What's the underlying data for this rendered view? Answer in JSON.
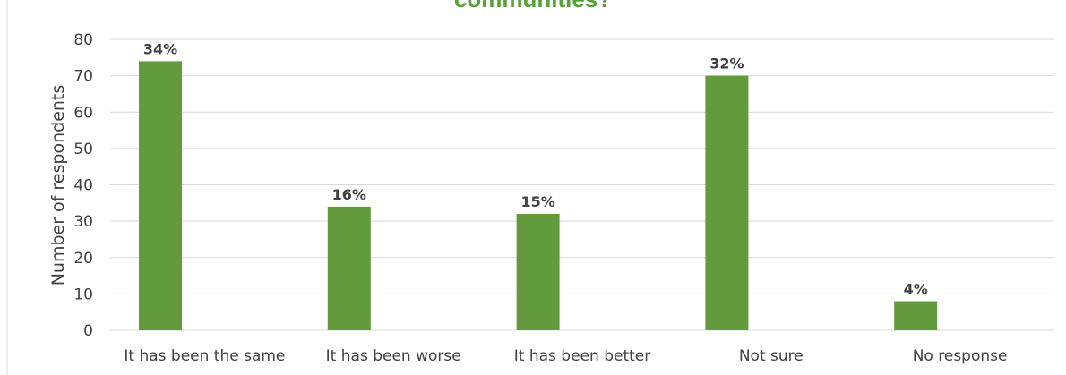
{
  "chart_data": {
    "type": "bar",
    "title": "communities?",
    "xlabel": "",
    "ylabel": "Number of respondents",
    "ylim": [
      0,
      80
    ],
    "yticks": [
      0,
      10,
      20,
      30,
      40,
      50,
      60,
      70,
      80
    ],
    "grid": true,
    "legend": "none",
    "categories": [
      "It has been the same",
      "It has been worse",
      "It has been better",
      "Not sure",
      "No response"
    ],
    "series": [
      {
        "values": [
          74,
          34,
          32,
          70,
          8
        ],
        "data_labels": [
          "34%",
          "16%",
          "15%",
          "32%",
          "4%"
        ],
        "color": "#649a3e"
      }
    ]
  }
}
